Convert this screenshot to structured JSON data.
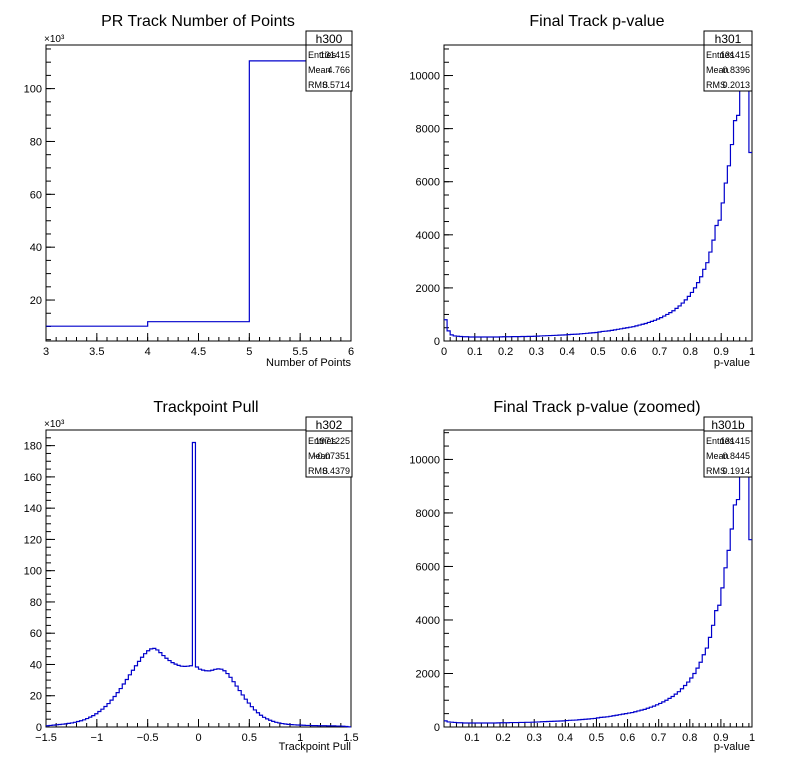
{
  "chart_data": [
    {
      "type": "histogram",
      "title": "PR Track Number of Points",
      "xlabel": "Number of Points",
      "ylabel": "",
      "y_multiplier": "×10³",
      "x_ticks": [
        "3",
        "3.5",
        "4",
        "4.5",
        "5",
        "5.5",
        "6"
      ],
      "y_ticks": [
        "20",
        "40",
        "60",
        "80",
        "100"
      ],
      "xlim": [
        3,
        6
      ],
      "ylim": [
        4.5,
        116.5
      ],
      "y_tick_values": [
        20,
        40,
        60,
        80,
        100
      ],
      "x_tick_values": [
        3,
        3.5,
        4,
        4.5,
        5,
        5.5,
        6
      ],
      "bins": [
        [
          3,
          4,
          10.1
        ],
        [
          4,
          5,
          11.8
        ],
        [
          5,
          6,
          110.5
        ]
      ],
      "stats": {
        "name": "h300",
        "rows": [
          [
            "Entries",
            "131415"
          ],
          [
            "Mean",
            "4.766"
          ],
          [
            "RMS",
            "0.5714"
          ]
        ]
      }
    },
    {
      "type": "histogram",
      "title": "Final Track p-value",
      "xlabel": "p-value",
      "ylabel": "",
      "x_ticks": [
        "0",
        "0.1",
        "0.2",
        "0.3",
        "0.4",
        "0.5",
        "0.6",
        "0.7",
        "0.8",
        "0.9",
        "1"
      ],
      "y_ticks": [
        "0",
        "2000",
        "4000",
        "6000",
        "8000",
        "10000"
      ],
      "xlim": [
        0,
        1
      ],
      "ylim": [
        0,
        11150
      ],
      "y_tick_values": [
        0,
        2000,
        4000,
        6000,
        8000,
        10000
      ],
      "x_tick_values": [
        0,
        0.1,
        0.2,
        0.3,
        0.4,
        0.5,
        0.6,
        0.7,
        0.8,
        0.9,
        1
      ],
      "nbins": 100,
      "bin_values": [
        800,
        380,
        230,
        190,
        180,
        170,
        160,
        160,
        150,
        150,
        150,
        150,
        150,
        150,
        150,
        150,
        150,
        150,
        155,
        160,
        160,
        160,
        165,
        165,
        165,
        170,
        170,
        175,
        175,
        180,
        185,
        190,
        195,
        200,
        205,
        210,
        215,
        220,
        225,
        230,
        240,
        250,
        255,
        260,
        270,
        280,
        290,
        300,
        310,
        320,
        340,
        360,
        370,
        380,
        400,
        420,
        440,
        460,
        480,
        500,
        520,
        540,
        570,
        600,
        630,
        660,
        700,
        740,
        780,
        830,
        880,
        940,
        1000,
        1070,
        1140,
        1230,
        1320,
        1430,
        1550,
        1680,
        1830,
        2000,
        2200,
        2420,
        2700,
        2950,
        3350,
        3800,
        4350,
        4550,
        5200,
        5950,
        6600,
        7400,
        8300,
        8500,
        9500,
        10400,
        11500,
        7100
      ],
      "stats": {
        "name": "h301",
        "rows": [
          [
            "Entries",
            "131415"
          ],
          [
            "Mean",
            "0.8396"
          ],
          [
            "RMS",
            "0.2013"
          ]
        ]
      }
    },
    {
      "type": "histogram",
      "title": "Trackpoint Pull",
      "xlabel": "Trackpoint Pull",
      "ylabel": "",
      "y_multiplier": "×10³",
      "x_ticks": [
        "−1.5",
        "−1",
        "−0.5",
        "0",
        "0.5",
        "1",
        "1.5"
      ],
      "y_ticks": [
        "0",
        "20",
        "40",
        "60",
        "80",
        "100",
        "120",
        "140",
        "160",
        "180"
      ],
      "xlim": [
        -1.5,
        1.5
      ],
      "ylim": [
        0,
        190
      ],
      "y_tick_values": [
        0,
        20,
        40,
        60,
        80,
        100,
        120,
        140,
        160,
        180
      ],
      "x_tick_values": [
        -1.5,
        -1,
        -0.5,
        0,
        0.5,
        1,
        1.5
      ],
      "nbins": 100,
      "bin_values": [
        0.8,
        1.0,
        1.2,
        1.4,
        1.6,
        1.8,
        2.0,
        2.3,
        2.6,
        3.0,
        3.5,
        4.0,
        4.6,
        5.4,
        6.3,
        7.3,
        8.5,
        9.9,
        11.4,
        13.1,
        15.0,
        17.2,
        19.5,
        22.0,
        24.6,
        27.5,
        30.4,
        33.4,
        36.3,
        39.2,
        42.0,
        44.6,
        46.9,
        48.8,
        50.0,
        50.3,
        49.3,
        47.6,
        45.7,
        44.0,
        42.5,
        41.2,
        40.2,
        39.4,
        38.9,
        38.8,
        38.9,
        39.2,
        182,
        38.4,
        37.0,
        36.4,
        36.0,
        35.9,
        36.3,
        36.9,
        37.2,
        37.0,
        36.0,
        34.2,
        31.8,
        29.0,
        26.2,
        23.3,
        20.5,
        17.8,
        15.3,
        13.0,
        10.9,
        9.1,
        7.5,
        6.2,
        5.2,
        4.3,
        3.6,
        3.0,
        2.6,
        2.2,
        1.9,
        1.7,
        1.5,
        1.4,
        1.3,
        1.2,
        1.1,
        1.0,
        1.0,
        0.9,
        0.9,
        0.8,
        0.8,
        0.8,
        0.7,
        0.7,
        0.7,
        0.6,
        0.6,
        0.5,
        0.3,
        0.1
      ],
      "stats": {
        "name": "h302",
        "rows": [
          [
            "Entries",
            "1971225"
          ],
          [
            "Mean",
            "−0.07351"
          ],
          [
            "RMS",
            "0.4379"
          ]
        ]
      }
    },
    {
      "type": "histogram",
      "title": "Final Track p-value (zoomed)",
      "xlabel": "p-value",
      "ylabel": "",
      "x_ticks": [
        "0.1",
        "0.2",
        "0.3",
        "0.4",
        "0.5",
        "0.6",
        "0.7",
        "0.8",
        "0.9",
        "1"
      ],
      "y_ticks": [
        "0",
        "2000",
        "4000",
        "6000",
        "8000",
        "10000"
      ],
      "xlim": [
        0.01,
        1
      ],
      "ylim": [
        0,
        11100
      ],
      "y_tick_values": [
        0,
        2000,
        4000,
        6000,
        8000,
        10000
      ],
      "x_tick_values": [
        0.1,
        0.2,
        0.3,
        0.4,
        0.5,
        0.6,
        0.7,
        0.8,
        0.9,
        1
      ],
      "nbins": 99,
      "bin_values": [
        230,
        190,
        180,
        170,
        160,
        160,
        150,
        150,
        150,
        150,
        150,
        150,
        150,
        150,
        150,
        150,
        150,
        155,
        160,
        160,
        160,
        165,
        165,
        165,
        170,
        170,
        175,
        175,
        180,
        185,
        190,
        195,
        200,
        205,
        210,
        215,
        220,
        225,
        230,
        240,
        250,
        255,
        260,
        270,
        280,
        290,
        300,
        310,
        320,
        340,
        360,
        370,
        380,
        400,
        420,
        440,
        460,
        480,
        500,
        520,
        540,
        570,
        600,
        630,
        660,
        700,
        740,
        780,
        830,
        880,
        940,
        1000,
        1070,
        1140,
        1230,
        1320,
        1430,
        1550,
        1680,
        1830,
        2000,
        2200,
        2420,
        2700,
        2950,
        3350,
        3800,
        4350,
        4550,
        5200,
        5950,
        6600,
        7400,
        8300,
        8500,
        9500,
        10400,
        11500,
        7000
      ],
      "stats": {
        "name": "h301b",
        "rows": [
          [
            "Entries",
            "131415"
          ],
          [
            "Mean",
            "0.8445"
          ],
          [
            "RMS",
            "0.1914"
          ]
        ]
      }
    }
  ],
  "colors": {
    "line": "#0000cc",
    "axis": "#000000",
    "background": "#ffffff"
  }
}
